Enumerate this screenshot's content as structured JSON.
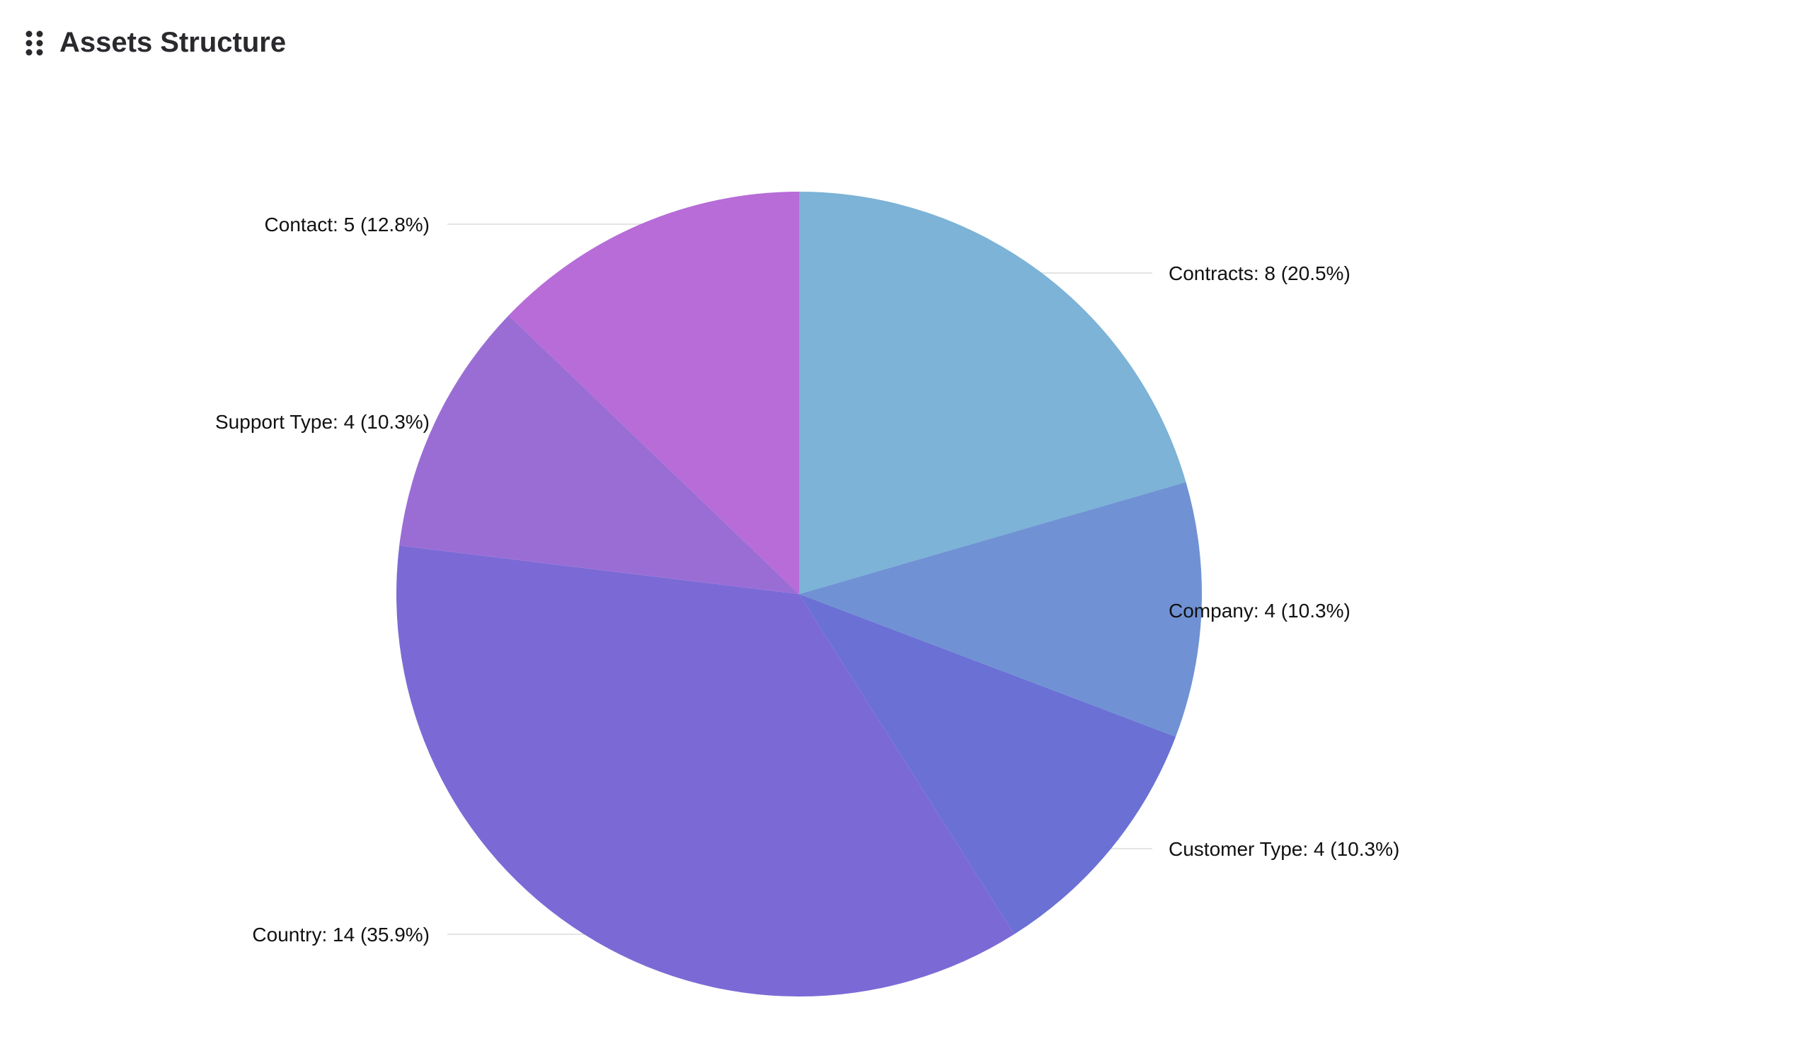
{
  "header": {
    "title": "Assets Structure",
    "icon": "drag-handle-icon"
  },
  "chart_data": {
    "type": "pie",
    "title": "Assets Structure",
    "slices": [
      {
        "label": "Contracts",
        "value": 8,
        "percent": 20.5,
        "text": "Contracts: 8 (20.5%)",
        "color": "#7cb3d7"
      },
      {
        "label": "Company",
        "value": 4,
        "percent": 10.3,
        "text": "Company: 4 (10.3%)",
        "color": "#7092d4"
      },
      {
        "label": "Customer Type",
        "value": 4,
        "percent": 10.3,
        "text": "Customer Type: 4 (10.3%)",
        "color": "#6a70d4"
      },
      {
        "label": "Country",
        "value": 14,
        "percent": 35.9,
        "text": "Country: 14 (35.9%)",
        "color": "#7b6ad5"
      },
      {
        "label": "Support Type",
        "value": 4,
        "percent": 10.3,
        "text": "Support Type: 4 (10.3%)",
        "color": "#9a6dd5"
      },
      {
        "label": "Contact",
        "value": 5,
        "percent": 12.8,
        "text": "Contact: 5 (12.8%)",
        "color": "#b76cd7"
      }
    ],
    "start_angle": "top, clockwise"
  }
}
